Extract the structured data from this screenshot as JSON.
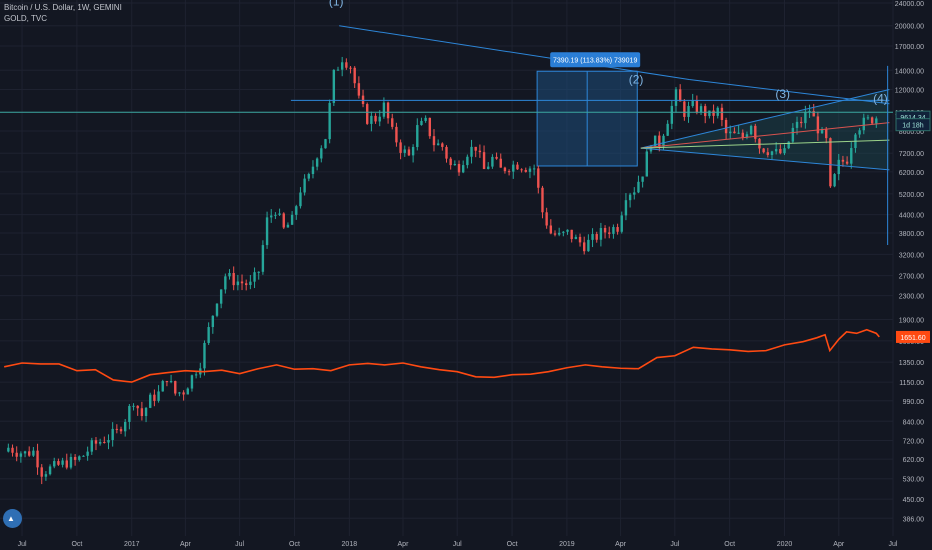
{
  "header": {
    "line1": "Bitcoin / U.S. Dollar, 1W, GEMINI",
    "line2": "GOLD, TVC"
  },
  "colors": {
    "background": "#131722",
    "grid": "#1e2230",
    "axis_text": "#b2b5be",
    "bull": "#26a69a",
    "bear": "#ef5350",
    "gold": "#ff4a12",
    "drawing": "#2d86d8",
    "wave_label": "#7fb3e0"
  },
  "chart_data": {
    "type": "candlestick",
    "title": "Bitcoin / U.S. Dollar, 1W, GEMINI",
    "y_scale": "log",
    "ylim": [
      360,
      24000
    ],
    "xlim": [
      "2016-05-25",
      "2020-07-01"
    ],
    "x_ticks": [
      {
        "date": "2016-07-01",
        "label": "Jul"
      },
      {
        "date": "2016-10-01",
        "label": "Oct"
      },
      {
        "date": "2017-01-01",
        "label": "2017"
      },
      {
        "date": "2017-04-01",
        "label": "Apr"
      },
      {
        "date": "2017-07-01",
        "label": "Jul"
      },
      {
        "date": "2017-10-01",
        "label": "Oct"
      },
      {
        "date": "2018-01-01",
        "label": "2018"
      },
      {
        "date": "2018-04-01",
        "label": "Apr"
      },
      {
        "date": "2018-07-01",
        "label": "Jul"
      },
      {
        "date": "2018-10-01",
        "label": "Oct"
      },
      {
        "date": "2019-01-01",
        "label": "2019"
      },
      {
        "date": "2019-04-01",
        "label": "Apr"
      },
      {
        "date": "2019-07-01",
        "label": "Jul"
      },
      {
        "date": "2019-10-01",
        "label": "Oct"
      },
      {
        "date": "2020-01-01",
        "label": "2020"
      },
      {
        "date": "2020-04-01",
        "label": "Apr"
      },
      {
        "date": "2020-07-01",
        "label": "Jul"
      }
    ],
    "y_ticks": [
      {
        "value": 24000,
        "label": "24000.00"
      },
      {
        "value": 20000,
        "label": "20000.00"
      },
      {
        "value": 17000,
        "label": "17000.00"
      },
      {
        "value": 14000,
        "label": "14000.00"
      },
      {
        "value": 12000,
        "label": "12000.00"
      },
      {
        "value": 10000,
        "label": "10000.00"
      },
      {
        "value": 8600,
        "label": "8600.00"
      },
      {
        "value": 7200,
        "label": "7200.00"
      },
      {
        "value": 6200,
        "label": "6200.00"
      },
      {
        "value": 5200,
        "label": "5200.00"
      },
      {
        "value": 4400,
        "label": "4400.00"
      },
      {
        "value": 3800,
        "label": "3800.00"
      },
      {
        "value": 3200,
        "label": "3200.00"
      },
      {
        "value": 2700,
        "label": "2700.00"
      },
      {
        "value": 2300,
        "label": "2300.00"
      },
      {
        "value": 1900,
        "label": "1900.00"
      },
      {
        "value": 1600,
        "label": "1600.00"
      },
      {
        "value": 1350,
        "label": "1350.00"
      },
      {
        "value": 1150,
        "label": "1150.00"
      },
      {
        "value": 990,
        "label": "990.00"
      },
      {
        "value": 840,
        "label": "840.00"
      },
      {
        "value": 720,
        "label": "720.00"
      },
      {
        "value": 620,
        "label": "620.00"
      },
      {
        "value": 530,
        "label": "530.00"
      },
      {
        "value": 450,
        "label": "450.00"
      },
      {
        "value": 386,
        "label": "386.00"
      }
    ],
    "price_labels": {
      "btc_last": {
        "value": 9614.34,
        "label": "9614.34"
      },
      "countdown": {
        "value": 9050,
        "label": "1d 18h"
      },
      "gold_last": {
        "value": 1651.6,
        "label": "1651.60"
      }
    },
    "btc_path": [
      [
        "2016-06-08",
        680
      ],
      [
        "2016-06-22",
        660
      ],
      [
        "2016-07-06",
        650
      ],
      [
        "2016-07-20",
        660
      ],
      [
        "2016-08-03",
        560
      ],
      [
        "2016-08-17",
        575
      ],
      [
        "2016-08-31",
        590
      ],
      [
        "2016-09-14",
        605
      ],
      [
        "2016-09-28",
        610
      ],
      [
        "2016-10-12",
        640
      ],
      [
        "2016-10-26",
        690
      ],
      [
        "2016-11-09",
        715
      ],
      [
        "2016-11-23",
        740
      ],
      [
        "2016-12-07",
        770
      ],
      [
        "2016-12-21",
        860
      ],
      [
        "2017-01-04",
        1000
      ],
      [
        "2017-01-18",
        880
      ],
      [
        "2017-02-01",
        1000
      ],
      [
        "2017-02-15",
        1050
      ],
      [
        "2017-03-01",
        1200
      ],
      [
        "2017-03-15",
        1050
      ],
      [
        "2017-03-29",
        1070
      ],
      [
        "2017-04-12",
        1200
      ],
      [
        "2017-04-26",
        1350
      ],
      [
        "2017-05-10",
        1750
      ],
      [
        "2017-05-24",
        2250
      ],
      [
        "2017-06-07",
        2700
      ],
      [
        "2017-06-21",
        2600
      ],
      [
        "2017-07-05",
        2550
      ],
      [
        "2017-07-19",
        2500
      ],
      [
        "2017-08-02",
        2800
      ],
      [
        "2017-08-16",
        4200
      ],
      [
        "2017-08-30",
        4600
      ],
      [
        "2017-09-13",
        3900
      ],
      [
        "2017-09-27",
        4200
      ],
      [
        "2017-10-11",
        5400
      ],
      [
        "2017-10-25",
        5900
      ],
      [
        "2017-11-08",
        7200
      ],
      [
        "2017-11-22",
        8200
      ],
      [
        "2017-12-06",
        13500
      ],
      [
        "2017-12-20",
        15500
      ],
      [
        "2018-01-03",
        14500
      ],
      [
        "2018-01-17",
        11000
      ],
      [
        "2018-01-31",
        9500
      ],
      [
        "2018-02-14",
        9500
      ],
      [
        "2018-02-28",
        10500
      ],
      [
        "2018-03-14",
        8500
      ],
      [
        "2018-03-28",
        7500
      ],
      [
        "2018-04-11",
        7000
      ],
      [
        "2018-04-25",
        8800
      ],
      [
        "2018-05-09",
        9200
      ],
      [
        "2018-05-23",
        7800
      ],
      [
        "2018-06-06",
        7600
      ],
      [
        "2018-06-20",
        6500
      ],
      [
        "2018-07-04",
        6500
      ],
      [
        "2018-07-18",
        7300
      ],
      [
        "2018-08-01",
        7600
      ],
      [
        "2018-08-15",
        6300
      ],
      [
        "2018-08-29",
        6900
      ],
      [
        "2018-09-12",
        6300
      ],
      [
        "2018-09-26",
        6500
      ],
      [
        "2018-10-10",
        6600
      ],
      [
        "2018-10-24",
        6450
      ],
      [
        "2018-11-07",
        6400
      ],
      [
        "2018-11-21",
        4500
      ],
      [
        "2018-12-05",
        3800
      ],
      [
        "2018-12-19",
        3700
      ],
      [
        "2019-01-02",
        3800
      ],
      [
        "2019-01-16",
        3600
      ],
      [
        "2019-01-30",
        3450
      ],
      [
        "2019-02-13",
        3600
      ],
      [
        "2019-02-27",
        3800
      ],
      [
        "2019-03-13",
        3900
      ],
      [
        "2019-03-27",
        4000
      ],
      [
        "2019-04-10",
        5200
      ],
      [
        "2019-04-24",
        5400
      ],
      [
        "2019-05-08",
        6200
      ],
      [
        "2019-05-22",
        8000
      ],
      [
        "2019-06-05",
        7800
      ],
      [
        "2019-06-19",
        9500
      ],
      [
        "2019-07-03",
        11500
      ],
      [
        "2019-07-17",
        10000
      ],
      [
        "2019-07-31",
        10500
      ],
      [
        "2019-08-14",
        10200
      ],
      [
        "2019-08-28",
        9700
      ],
      [
        "2019-09-11",
        10100
      ],
      [
        "2019-09-25",
        8400
      ],
      [
        "2019-10-09",
        8300
      ],
      [
        "2019-10-23",
        8200
      ],
      [
        "2019-11-06",
        9200
      ],
      [
        "2019-11-20",
        7600
      ],
      [
        "2019-12-04",
        7400
      ],
      [
        "2019-12-18",
        7200
      ],
      [
        "2020-01-01",
        7200
      ],
      [
        "2020-01-15",
        8700
      ],
      [
        "2020-01-29",
        9300
      ],
      [
        "2020-02-12",
        10200
      ],
      [
        "2020-02-26",
        8800
      ],
      [
        "2020-03-11",
        7900
      ],
      [
        "2020-03-18",
        5300
      ],
      [
        "2020-04-01",
        6600
      ],
      [
        "2020-04-15",
        6900
      ],
      [
        "2020-04-29",
        8800
      ],
      [
        "2020-05-13",
        9200
      ],
      [
        "2020-05-27",
        9500
      ],
      [
        "2020-06-03",
        9614
      ]
    ],
    "gold_series": [
      [
        "2016-06-01",
        1300
      ],
      [
        "2016-07-01",
        1340
      ],
      [
        "2016-08-01",
        1330
      ],
      [
        "2016-09-01",
        1330
      ],
      [
        "2016-10-01",
        1260
      ],
      [
        "2016-11-01",
        1270
      ],
      [
        "2016-12-01",
        1170
      ],
      [
        "2017-01-01",
        1150
      ],
      [
        "2017-02-01",
        1220
      ],
      [
        "2017-03-01",
        1240
      ],
      [
        "2017-04-01",
        1260
      ],
      [
        "2017-05-01",
        1250
      ],
      [
        "2017-06-01",
        1265
      ],
      [
        "2017-07-01",
        1230
      ],
      [
        "2017-08-01",
        1280
      ],
      [
        "2017-09-01",
        1320
      ],
      [
        "2017-10-01",
        1275
      ],
      [
        "2017-11-01",
        1280
      ],
      [
        "2017-12-01",
        1260
      ],
      [
        "2018-01-01",
        1320
      ],
      [
        "2018-02-01",
        1335
      ],
      [
        "2018-03-01",
        1320
      ],
      [
        "2018-04-01",
        1340
      ],
      [
        "2018-05-01",
        1300
      ],
      [
        "2018-06-01",
        1270
      ],
      [
        "2018-07-01",
        1250
      ],
      [
        "2018-08-01",
        1200
      ],
      [
        "2018-09-01",
        1195
      ],
      [
        "2018-10-01",
        1220
      ],
      [
        "2018-11-01",
        1225
      ],
      [
        "2018-12-01",
        1250
      ],
      [
        "2019-01-01",
        1290
      ],
      [
        "2019-02-01",
        1320
      ],
      [
        "2019-03-01",
        1300
      ],
      [
        "2019-04-01",
        1285
      ],
      [
        "2019-05-01",
        1280
      ],
      [
        "2019-06-01",
        1400
      ],
      [
        "2019-07-01",
        1420
      ],
      [
        "2019-08-01",
        1520
      ],
      [
        "2019-09-01",
        1500
      ],
      [
        "2019-10-01",
        1490
      ],
      [
        "2019-11-01",
        1470
      ],
      [
        "2019-12-01",
        1480
      ],
      [
        "2020-01-01",
        1550
      ],
      [
        "2020-02-01",
        1590
      ],
      [
        "2020-02-24",
        1640
      ],
      [
        "2020-03-09",
        1680
      ],
      [
        "2020-03-17",
        1480
      ],
      [
        "2020-04-01",
        1620
      ],
      [
        "2020-04-14",
        1720
      ],
      [
        "2020-05-01",
        1700
      ],
      [
        "2020-05-18",
        1750
      ],
      [
        "2020-06-03",
        1700
      ],
      [
        "2020-06-08",
        1651.6
      ]
    ],
    "annotations": {
      "measure_box": {
        "label": "7390.19 (113.83%) 739019",
        "from_date": "2018-11-12",
        "to_date": "2019-04-29",
        "from_price": 6500,
        "to_price": 13889
      },
      "waves": [
        {
          "label": "(1)",
          "date": "2017-12-10",
          "price": 23500
        },
        {
          "label": "(2)",
          "date": "2019-04-27",
          "price": 12600
        },
        {
          "label": "(3)",
          "date": "2019-12-29",
          "price": 11200
        },
        {
          "label": "(4)",
          "date": "2020-06-10",
          "price": 10800
        }
      ],
      "lines": [
        {
          "from": [
            "2017-12-15",
            20000
          ],
          "to": [
            "2019-07-25",
            13000
          ]
        },
        {
          "from": [
            "2019-07-25",
            13000
          ],
          "to": [
            "2020-06-25",
            10700
          ]
        },
        {
          "from": [
            "2017-09-25",
            11000
          ],
          "to": [
            "2020-06-25",
            11000
          ]
        },
        {
          "from": [
            "2016-05-25",
            10000
          ],
          "to": [
            "2020-07-01",
            10000
          ]
        },
        {
          "from": [
            "2019-05-05",
            7500
          ],
          "to": [
            "2020-06-25",
            6300
          ]
        },
        {
          "from": [
            "2019-05-05",
            7500
          ],
          "to": [
            "2020-06-25",
            12000
          ]
        },
        {
          "from": [
            "2019-05-05",
            7500
          ],
          "to": [
            "2020-06-25",
            9200
          ]
        },
        {
          "from": [
            "2019-05-05",
            7500
          ],
          "to": [
            "2020-06-25",
            8000
          ]
        }
      ],
      "vertical_line": {
        "date": "2020-06-22",
        "from_price": 3450,
        "to_price": 14500
      }
    }
  }
}
